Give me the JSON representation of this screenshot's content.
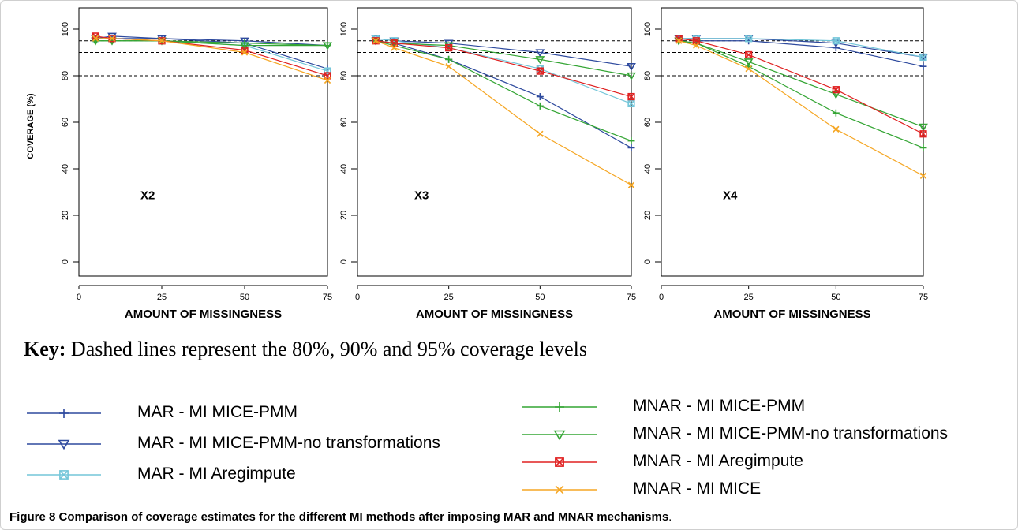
{
  "chart_data": [
    {
      "type": "line",
      "title": "X2",
      "xlabel": "AMOUNT OF MISSINGNESS",
      "ylabel": "COVERAGE (%)",
      "x": [
        5,
        10,
        25,
        50,
        75
      ],
      "xticks": [
        "0",
        "25",
        "50",
        "75"
      ],
      "yticks": [
        "0",
        "20",
        "40",
        "60",
        "80",
        "100"
      ],
      "xlim": [
        0,
        75
      ],
      "ylim": [
        0,
        100
      ],
      "reference_lines": [
        80,
        90,
        95
      ],
      "series": [
        {
          "name": "MAR - MI MICE-PMM",
          "color": "#2e4a9e",
          "marker": "plus",
          "values": [
            96,
            96,
            96,
            94,
            83
          ]
        },
        {
          "name": "MAR - MI MICE-PMM-no transformations",
          "color": "#2e4a9e",
          "marker": "triangle-down",
          "values": [
            96,
            97,
            96,
            95,
            93
          ]
        },
        {
          "name": "MAR - MI Aregimpute",
          "color": "#74c6d9",
          "marker": "square-x",
          "values": [
            96,
            96,
            95,
            93,
            82
          ]
        },
        {
          "name": "MNAR - MI MICE-PMM",
          "color": "#34a534",
          "marker": "plus",
          "values": [
            95,
            95,
            95,
            94,
            93
          ]
        },
        {
          "name": "MNAR - MI MICE-PMM-no transformations",
          "color": "#34a534",
          "marker": "triangle-down",
          "values": [
            95,
            95,
            95,
            93,
            93
          ]
        },
        {
          "name": "MNAR - MI Aregimpute",
          "color": "#e02020",
          "marker": "square-x",
          "values": [
            97,
            96,
            95,
            91,
            80
          ]
        },
        {
          "name": "MNAR - MI MICE",
          "color": "#f5a623",
          "marker": "x",
          "values": [
            96,
            96,
            95,
            90,
            78
          ]
        }
      ]
    },
    {
      "type": "line",
      "title": "X3",
      "xlabel": "AMOUNT OF MISSINGNESS",
      "ylabel": "",
      "x": [
        5,
        10,
        25,
        50,
        75
      ],
      "xticks": [
        "0",
        "25",
        "50",
        "75"
      ],
      "yticks": [
        "0",
        "20",
        "40",
        "60",
        "80",
        "100"
      ],
      "xlim": [
        0,
        75
      ],
      "ylim": [
        0,
        100
      ],
      "reference_lines": [
        80,
        90,
        95
      ],
      "series": [
        {
          "name": "MAR - MI MICE-PMM",
          "color": "#2e4a9e",
          "marker": "plus",
          "values": [
            95,
            94,
            87,
            71,
            49
          ]
        },
        {
          "name": "MAR - MI MICE-PMM-no transformations",
          "color": "#2e4a9e",
          "marker": "triangle-down",
          "values": [
            96,
            95,
            94,
            90,
            84
          ]
        },
        {
          "name": "MAR - MI Aregimpute",
          "color": "#74c6d9",
          "marker": "square-x",
          "values": [
            96,
            95,
            92,
            83,
            68
          ]
        },
        {
          "name": "MNAR - MI MICE-PMM",
          "color": "#34a534",
          "marker": "plus",
          "values": [
            95,
            93,
            87,
            67,
            52
          ]
        },
        {
          "name": "MNAR - MI MICE-PMM-no transformations",
          "color": "#34a534",
          "marker": "triangle-down",
          "values": [
            95,
            94,
            93,
            87,
            80
          ]
        },
        {
          "name": "MNAR - MI Aregimpute",
          "color": "#e02020",
          "marker": "square-x",
          "values": [
            95,
            94,
            92,
            82,
            71
          ]
        },
        {
          "name": "MNAR - MI MICE",
          "color": "#f5a623",
          "marker": "x",
          "values": [
            95,
            92,
            84,
            55,
            33
          ]
        }
      ]
    },
    {
      "type": "line",
      "title": "X4",
      "xlabel": "AMOUNT OF MISSINGNESS",
      "ylabel": "",
      "x": [
        5,
        10,
        25,
        50,
        75
      ],
      "xticks": [
        "0",
        "25",
        "50",
        "75"
      ],
      "yticks": [
        "0",
        "20",
        "40",
        "60",
        "80",
        "100"
      ],
      "xlim": [
        0,
        75
      ],
      "ylim": [
        0,
        100
      ],
      "reference_lines": [
        80,
        90,
        95
      ],
      "series": [
        {
          "name": "MAR - MI MICE-PMM",
          "color": "#2e4a9e",
          "marker": "plus",
          "values": [
            96,
            95,
            95,
            92,
            84
          ]
        },
        {
          "name": "MAR - MI MICE-PMM-no transformations",
          "color": "#2e4a9e",
          "marker": "triangle-down",
          "values": [
            96,
            96,
            96,
            94,
            88
          ]
        },
        {
          "name": "MAR - MI Aregimpute",
          "color": "#74c6d9",
          "marker": "square-x",
          "values": [
            96,
            96,
            96,
            95,
            88
          ]
        },
        {
          "name": "MNAR - MI MICE-PMM",
          "color": "#34a534",
          "marker": "plus",
          "values": [
            95,
            94,
            84,
            64,
            49
          ]
        },
        {
          "name": "MNAR - MI MICE-PMM-no transformations",
          "color": "#34a534",
          "marker": "triangle-down",
          "values": [
            95,
            94,
            86,
            72,
            58
          ]
        },
        {
          "name": "MNAR - MI Aregimpute",
          "color": "#e02020",
          "marker": "square-x",
          "values": [
            96,
            95,
            89,
            74,
            55
          ]
        },
        {
          "name": "MNAR - MI MICE",
          "color": "#f5a623",
          "marker": "x",
          "values": [
            95,
            93,
            83,
            57,
            37
          ]
        }
      ]
    }
  ],
  "key_note": {
    "label": "Key:",
    "text": "Dashed lines represent the 80%, 90% and 95% coverage levels"
  },
  "legend": {
    "left": [
      {
        "label": "MAR - MI MICE-PMM",
        "color": "#2e4a9e",
        "marker": "plus"
      },
      {
        "label": "MAR - MI MICE-PMM-no transformations",
        "color": "#2e4a9e",
        "marker": "triangle-down"
      },
      {
        "label": "MAR - MI Aregimpute",
        "color": "#74c6d9",
        "marker": "square-x"
      }
    ],
    "right": [
      {
        "label": "MNAR - MI MICE-PMM",
        "color": "#34a534",
        "marker": "plus"
      },
      {
        "label": "MNAR - MI MICE-PMM-no transformations",
        "color": "#34a534",
        "marker": "triangle-down"
      },
      {
        "label": "MNAR - MI Aregimpute",
        "color": "#e02020",
        "marker": "square-x"
      },
      {
        "label": "MNAR - MI MICE",
        "color": "#f5a623",
        "marker": "x"
      }
    ]
  },
  "caption": {
    "figure": "Figure 8",
    "text": "Comparison of coverage estimates for the different MI methods after imposing MAR and MNAR mechanisms",
    "end": "."
  }
}
